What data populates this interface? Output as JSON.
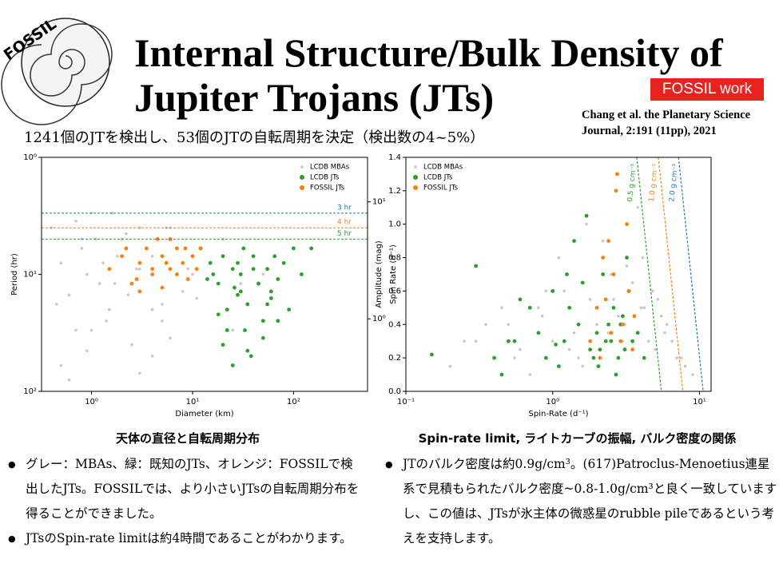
{
  "header": {
    "logo": "FOSSIL",
    "title_line1": "Internal Structure/Bulk Density of",
    "title_line2": "Jupiter Trojans (JTs)",
    "badge": "FOSSIL work",
    "citation_line1": "Chang et al. the Planetary Science",
    "citation_line2": "Journal, 2:191 (11pp), 2021"
  },
  "subtitle": "1241個のJTを検出し、53個のJTの自転周期を決定（検出数の4~5%）",
  "chart_data": [
    {
      "type": "scatter",
      "xlabel": "Diameter (km)",
      "ylabel": "Period (hr)",
      "y2label": "Spin Rate (d⁻¹)",
      "xscale": "log",
      "yscale": "log",
      "legend": "upper right",
      "xlim": [
        0.32,
        540
      ],
      "ylim": [
        100,
        1
      ],
      "y2lim": [
        0.24,
        24
      ],
      "xticks": [
        {
          "value": 1,
          "label": "10⁰"
        },
        {
          "value": 10,
          "label": "10¹"
        },
        {
          "value": 100,
          "label": "10²"
        }
      ],
      "yticks": [
        {
          "value": 1,
          "label": "10⁰"
        },
        {
          "value": 10,
          "label": "10¹"
        },
        {
          "value": 100,
          "label": "10²"
        }
      ],
      "y2ticks": [
        {
          "value": 10,
          "label": "10¹"
        },
        {
          "value": 1,
          "label": "10⁰"
        }
      ],
      "hlines": [
        {
          "value": 3,
          "label": "3 hr",
          "color": "#1f77b4"
        },
        {
          "value": 4,
          "label": "4 hr",
          "color": "#ff7f0e"
        },
        {
          "value": 5,
          "label": "5 hr",
          "color": "#2ca02c"
        }
      ],
      "series": [
        {
          "name": "LCDB MBAs",
          "color": "#c8c8c8",
          "x": [
            0.4,
            0.5,
            0.6,
            0.7,
            0.8,
            1,
            1.2,
            1.5,
            2,
            2.5,
            3,
            4,
            5,
            6,
            8,
            10,
            12,
            15,
            20,
            30,
            0.5,
            0.7,
            0.9,
            1.1,
            1.4,
            1.8,
            2.3,
            3,
            4,
            5,
            7,
            9,
            0.6,
            0.8,
            1,
            1.3,
            1.7,
            2.2,
            3,
            4,
            6,
            0.45,
            0.9,
            1.6,
            2.8,
            3.5,
            5.5,
            11,
            25,
            50
          ],
          "values": [
            4,
            8,
            15,
            30,
            6,
            3,
            12,
            20,
            5,
            40,
            9,
            7,
            25,
            4,
            14,
            10,
            6,
            8,
            5,
            12,
            60,
            3.5,
            10,
            5,
            25,
            7,
            15,
            4,
            50,
            18,
            6,
            9,
            80,
            5,
            30,
            8,
            12,
            4.5,
            70,
            20,
            35,
            18,
            45,
            3,
            9,
            6,
            4,
            16,
            30,
            10
          ]
        },
        {
          "name": "LCDB JTs",
          "color": "#2ca02c",
          "x": [
            12,
            15,
            18,
            20,
            22,
            25,
            28,
            30,
            33,
            35,
            40,
            45,
            50,
            55,
            60,
            70,
            80,
            90,
            100,
            120,
            150,
            20,
            25,
            30,
            40,
            50,
            60,
            16,
            18,
            35,
            45,
            70,
            28,
            22,
            14,
            55,
            65,
            38,
            32,
            26
          ],
          "values": [
            6,
            8,
            12,
            7,
            20,
            9,
            15,
            10,
            30,
            18,
            7,
            12,
            25,
            9,
            14,
            11,
            8,
            20,
            6,
            10,
            6,
            40,
            60,
            14,
            9,
            35,
            16,
            10,
            22,
            45,
            12,
            25,
            8,
            30,
            11,
            18,
            7,
            50,
            6,
            13
          ]
        },
        {
          "name": "FOSSIL JTs",
          "color": "#ff7f0e",
          "x": [
            1.5,
            2,
            2.5,
            3,
            3.5,
            4,
            4.5,
            5,
            6,
            7,
            8,
            9,
            10,
            12,
            3,
            4,
            5,
            6,
            7,
            2.2,
            2.8,
            5.5,
            8.5,
            11
          ],
          "values": [
            9,
            7,
            12,
            8,
            6,
            10,
            5,
            7,
            9,
            6,
            8,
            11,
            7,
            6,
            14,
            9,
            13,
            5,
            10,
            6,
            11,
            8,
            6,
            9
          ]
        }
      ]
    },
    {
      "type": "scatter",
      "xlabel": "Spin-Rate (d⁻¹)",
      "ylabel": "Amplitude (mag)",
      "xscale": "log",
      "yscale": "linear",
      "legend": "upper left",
      "xlim": [
        0.1,
        12
      ],
      "ylim": [
        0,
        1.4
      ],
      "xticks": [
        {
          "value": 0.1,
          "label": "10⁻¹"
        },
        {
          "value": 1,
          "label": "10⁰"
        },
        {
          "value": 10,
          "label": "10¹"
        }
      ],
      "yticks": [
        {
          "value": 0,
          "label": "0.0"
        },
        0.2,
        0.4,
        0.6,
        0.8,
        {
          "value": 1,
          "label": "1.0"
        },
        1.2,
        1.4
      ],
      "lines": [
        {
          "label": "0.5 g cm⁻³",
          "color": "#2ca02c",
          "x": [
            3.74,
            5.5
          ],
          "values": [
            1.4,
            0
          ]
        },
        {
          "label": "1.0 g cm⁻³",
          "color": "#ff7f0e",
          "x": [
            5.25,
            7.7
          ],
          "values": [
            1.4,
            0
          ]
        },
        {
          "label": "2.0 g cm⁻³",
          "color": "#1f77b4",
          "x": [
            7.2,
            10.6
          ],
          "values": [
            1.4,
            0
          ]
        }
      ],
      "series": [
        {
          "name": "LCDB MBAs",
          "color": "#c8c8c8",
          "x": [
            0.2,
            0.3,
            0.4,
            0.5,
            0.6,
            0.8,
            1,
            1.2,
            1.5,
            2,
            2.5,
            3,
            4,
            5,
            6,
            7,
            8,
            1.1,
            1.4,
            1.8,
            2.2,
            2.8,
            3.5,
            4.5,
            5.5,
            0.7,
            0.9,
            1.3,
            1.7,
            2.4,
            3.2,
            4.2,
            6.5,
            0.35,
            0.55,
            1.6,
            2.6,
            3.8,
            4.8,
            5.8,
            7.5,
            0.25,
            0.45,
            0.85,
            1.25,
            2.1,
            3.1,
            4.1,
            5.2,
            9
          ],
          "values": [
            0.15,
            0.3,
            0.2,
            0.4,
            0.25,
            0.5,
            0.3,
            0.6,
            0.2,
            0.4,
            0.7,
            0.3,
            0.5,
            0.25,
            0.4,
            0.2,
            0.15,
            0.8,
            0.35,
            0.55,
            0.9,
            0.45,
            0.65,
            0.3,
            0.45,
            0.1,
            0.6,
            0.25,
            1,
            0.35,
            0.75,
            0.5,
            0.3,
            0.4,
            0.2,
            0.15,
            0.55,
            1.1,
            0.6,
            0.35,
            0.2,
            0.3,
            0.5,
            0.45,
            0.7,
            0.2,
            0.4,
            0.8,
            0.55,
            0.1
          ]
        },
        {
          "name": "LCDB JTs",
          "color": "#2ca02c",
          "x": [
            0.4,
            0.5,
            0.7,
            0.9,
            1,
            1.2,
            1.5,
            1.8,
            2,
            2.2,
            2.5,
            2.8,
            3,
            3.2,
            3.5,
            1.1,
            1.3,
            1.6,
            2.1,
            2.4,
            2.7,
            0.6,
            0.8,
            1.4,
            1.9,
            2.3,
            2.6,
            3.3,
            0.3,
            1.7,
            0.45,
            0.15,
            2.9,
            1.05,
            3.8,
            4.2,
            1.25,
            2.05,
            0.55,
            3.1
          ],
          "values": [
            0.2,
            0.3,
            0.5,
            0.2,
            0.6,
            0.3,
            0.4,
            0.25,
            0.35,
            0.7,
            0.3,
            0.2,
            0.45,
            0.8,
            0.3,
            0.15,
            0.5,
            0.65,
            0.25,
            0.4,
            0.1,
            0.55,
            0.35,
            0.9,
            0.2,
            0.3,
            0.5,
            0.6,
            0.75,
            1.05,
            0.1,
            0.22,
            0.4,
            0.28,
            0.35,
            0.2,
            0.7,
            0.15,
            0.3,
            0.25
          ]
        },
        {
          "name": "FOSSIL JTs",
          "color": "#ff7f0e",
          "x": [
            1.8,
            2,
            2.2,
            2.5,
            2.7,
            3,
            3.3,
            3.5,
            2.4,
            2.9,
            3.2,
            2.1,
            2.6,
            2.75,
            3.6,
            2.3
          ],
          "values": [
            0.3,
            0.5,
            0.8,
            0.35,
            1.2,
            0.4,
            0.6,
            0.25,
            0.9,
            0.3,
            1,
            0.2,
            0.7,
            1.3,
            0.45,
            0.55
          ]
        }
      ]
    }
  ],
  "captions": [
    "天体の直径と自転周期分布",
    "Spin-rate limit, ライトカーブの振幅, バルク密度の関係"
  ],
  "left_bullets": [
    "グレー：MBAs、緑：既知のJTs、オレンジ：FOSSILで検出したJTs。FOSSILでは、より小さいJTsの自転周期分布を得ることができました。",
    "JTsのSpin-rate limitは約4時間であることがわかります。"
  ],
  "right_bullets": [
    "JTのバルク密度は約0.9g/cm³。(617)Patroclus-Menoetius連星系で見積もられたバルク密度~0.8-1.0g/cm³と良く一致していますし、この値は、JTsが氷主体の微惑星のrubble pileであるという考えを支持します。"
  ]
}
